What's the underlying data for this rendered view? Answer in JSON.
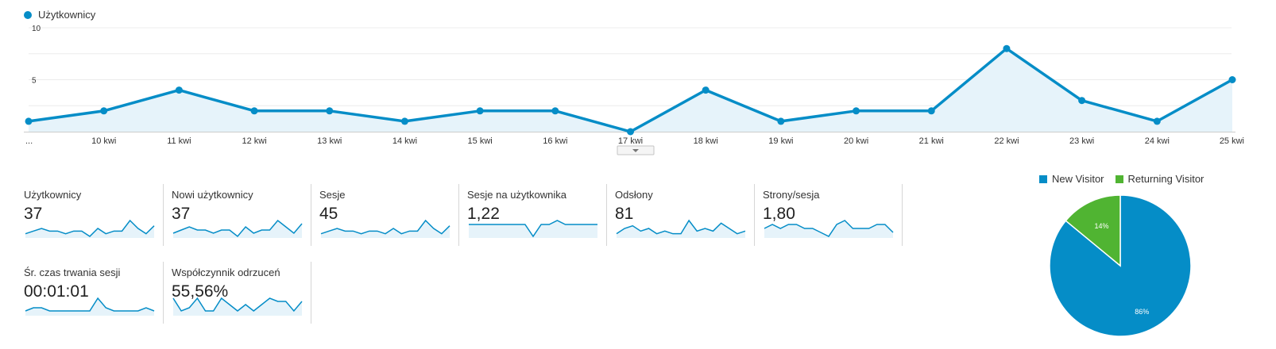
{
  "chart_data": [
    {
      "type": "area",
      "series": [
        {
          "name": "Użytkownicy",
          "values": [
            1,
            2,
            4,
            2,
            2,
            1,
            2,
            2,
            0,
            4,
            1,
            2,
            2,
            8,
            3,
            1,
            5
          ]
        }
      ],
      "categories": [
        "...",
        "10 kwi",
        "11 kwi",
        "12 kwi",
        "13 kwi",
        "14 kwi",
        "15 kwi",
        "16 kwi",
        "17 kwi",
        "18 kwi",
        "19 kwi",
        "20 kwi",
        "21 kwi",
        "22 kwi",
        "23 kwi",
        "24 kwi",
        "25 kwi"
      ],
      "yticks": [
        "10",
        "5"
      ],
      "ylim": [
        0,
        10
      ],
      "legend": "top-left",
      "grid": true,
      "color": "#058dc7"
    },
    {
      "type": "pie",
      "labels": [
        "New Visitor",
        "Returning Visitor"
      ],
      "values": [
        86,
        14
      ],
      "value_labels": [
        "86%",
        "14%"
      ],
      "colors": [
        "#058dc7",
        "#50b432"
      ],
      "legend": "top"
    }
  ],
  "metrics": [
    {
      "label": "Użytkownicy",
      "value": "37",
      "spark": [
        1,
        2,
        3,
        2,
        2,
        1,
        2,
        2,
        0,
        3,
        1,
        2,
        2,
        6,
        3,
        1,
        4
      ]
    },
    {
      "label": "Nowi użytkownicy",
      "value": "37",
      "spark": [
        1,
        2,
        3,
        2,
        2,
        1,
        2,
        2,
        0,
        3,
        1,
        2,
        2,
        5,
        3,
        1,
        4
      ]
    },
    {
      "label": "Sesje",
      "value": "45",
      "spark": [
        1,
        2,
        3,
        2,
        2,
        1,
        2,
        2,
        1,
        3,
        1,
        2,
        2,
        6,
        3,
        1,
        4
      ]
    },
    {
      "label": "Sesje na użytkownika",
      "value": "1,22",
      "spark": [
        3,
        3,
        3,
        3,
        3,
        3,
        3,
        3,
        0,
        3,
        3,
        4,
        3,
        3,
        3,
        3,
        3
      ]
    },
    {
      "label": "Odsłony",
      "value": "81",
      "spark": [
        1,
        3,
        4,
        2,
        3,
        1,
        2,
        1,
        1,
        6,
        2,
        3,
        2,
        5,
        3,
        1,
        2
      ]
    },
    {
      "label": "Strony/sesja",
      "value": "1,80",
      "spark": [
        2,
        3,
        2,
        3,
        3,
        2,
        2,
        1,
        0,
        3,
        4,
        2,
        2,
        2,
        3,
        3,
        1
      ]
    },
    {
      "label": "Śr. czas trwania sesji",
      "value": "00:01:01",
      "spark": [
        1,
        2,
        2,
        1,
        1,
        1,
        1,
        1,
        1,
        5,
        2,
        1,
        1,
        1,
        1,
        2,
        1
      ]
    },
    {
      "label": "Współczynnik odrzuceń",
      "value": "55,56%",
      "spark": [
        5,
        1,
        2,
        5,
        1,
        1,
        5,
        3,
        1,
        3,
        1,
        3,
        5,
        4,
        4,
        1,
        4
      ]
    }
  ]
}
